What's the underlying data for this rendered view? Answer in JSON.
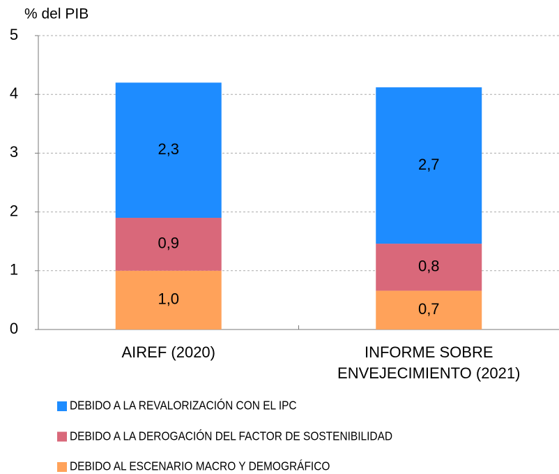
{
  "chart_data": {
    "type": "stacked_bar",
    "y_axis_label": "% del PIB",
    "categories": [
      "AIREF (2020)",
      "INFORME SOBRE\nENVEJECIMIENTO (2021)"
    ],
    "series": [
      {
        "name": "DEBIDO AL ESCENARIO MACRO Y DEMOGRÁFICO",
        "color": "#ffa25a",
        "values": [
          1.0,
          0.66
        ],
        "value_labels": [
          "1,0",
          "0,7"
        ]
      },
      {
        "name": "DEBIDO A LA DEROGACIÓN DEL FACTOR DE SOSTENIBILIDAD",
        "color": "#d9687a",
        "values": [
          0.9,
          0.8
        ],
        "value_labels": [
          "0,9",
          "0,8"
        ]
      },
      {
        "name": "DEBIDO A LA REVALORIZACIÓN CON EL IPC",
        "color": "#1e8cff",
        "values": [
          2.3,
          2.66
        ],
        "value_labels": [
          "2,3",
          "2,7"
        ]
      }
    ],
    "ylim": [
      0,
      5
    ],
    "yticks": [
      0,
      1,
      2,
      3,
      4,
      5
    ],
    "grid": true
  }
}
